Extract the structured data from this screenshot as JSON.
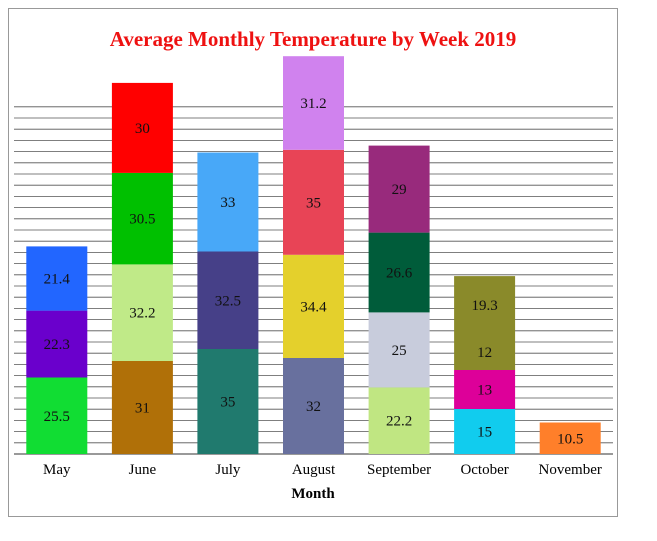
{
  "chart_data": {
    "type": "bar",
    "stacked": true,
    "title": "Average Monthly Temperature by Week 2019",
    "xlabel": "Month",
    "ylabel": "",
    "title_color": "#ee1111",
    "grid": true,
    "ylim": [
      0,
      130
    ],
    "categories": [
      "May",
      "June",
      "July",
      "August",
      "September",
      "October",
      "November"
    ],
    "stacks": [
      [
        {
          "value": 25.5,
          "color": "#11dd33"
        },
        {
          "value": 22.3,
          "color": "#6a00cc"
        },
        {
          "value": 21.4,
          "color": "#2266ff"
        }
      ],
      [
        {
          "value": 31,
          "color": "#b07008"
        },
        {
          "value": 32.2,
          "color": "#c0ea88"
        },
        {
          "value": 30.5,
          "color": "#00c000"
        },
        {
          "value": 30,
          "color": "#ff0000"
        }
      ],
      [
        {
          "value": 35,
          "color": "#207a6e"
        },
        {
          "value": 32.5,
          "color": "#464088"
        },
        {
          "value": 33,
          "color": "#48a8f8"
        }
      ],
      [
        {
          "value": 32,
          "color": "#68709e"
        },
        {
          "value": 34.4,
          "color": "#e4d02c"
        },
        {
          "value": 35,
          "color": "#e84456"
        },
        {
          "value": 31.2,
          "color": "#d082ee"
        }
      ],
      [
        {
          "value": 22.2,
          "color": "#c0e682"
        },
        {
          "value": 25,
          "color": "#c8ccdc"
        },
        {
          "value": 26.6,
          "color": "#005c3a"
        },
        {
          "value": 29,
          "color": "#982a7c"
        }
      ],
      [
        {
          "value": 15,
          "color": "#11ccee"
        },
        {
          "value": 13,
          "color": "#dd0099"
        },
        {
          "value": 12,
          "color": "#8a8a2a"
        },
        {
          "value": 19.3,
          "color": "#8a8a2a"
        }
      ],
      [
        {
          "value": 10.5,
          "color": "#ff7f2a"
        }
      ]
    ]
  }
}
